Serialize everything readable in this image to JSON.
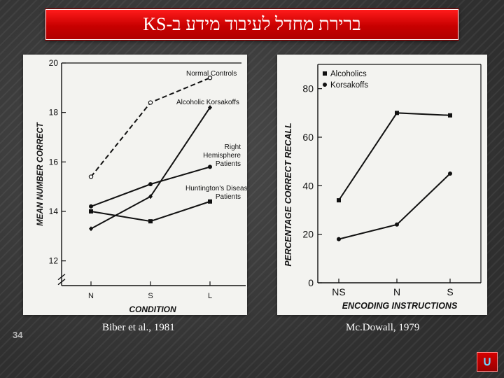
{
  "slide": {
    "title": "ברירת מחדל לעיבוד מידע ב-KS",
    "slide_number": "34",
    "return_icon": "u-turn-return-icon",
    "colors": {
      "banner": "#d40000",
      "background": "#3a3a3a",
      "panel": "#f3f3f0",
      "ink": "#111111"
    }
  },
  "chart_data": [
    {
      "type": "line",
      "caption": "Biber et al., 1981",
      "xlabel": "CONDITION",
      "ylabel": "MEAN NUMBER CORRECT",
      "categories": [
        "N",
        "S",
        "L"
      ],
      "ylim": [
        11,
        20
      ],
      "yticks": [
        12,
        14,
        16,
        18,
        20
      ],
      "axis_break": true,
      "series": [
        {
          "name": "Normal Controls",
          "values": [
            15.4,
            18.4,
            19.4
          ],
          "marker": "open-circle",
          "dash": true
        },
        {
          "name": "Alcoholic Korsakoffs",
          "values": [
            13.3,
            14.6,
            18.2
          ],
          "marker": "diamond",
          "dash": false
        },
        {
          "name": "Right Hemisphere Patients",
          "values": [
            14.2,
            15.1,
            15.8
          ],
          "marker": "filled-circle",
          "dash": false
        },
        {
          "name": "Huntington's Disease Patients",
          "values": [
            14.0,
            13.6,
            14.4
          ],
          "marker": "filled-square",
          "dash": false
        }
      ]
    },
    {
      "type": "line",
      "caption": "Mc.Dowall, 1979",
      "xlabel": "ENCODING INSTRUCTIONS",
      "ylabel": "PERCENTAGE CORRECT RECALL",
      "categories": [
        "NS",
        "N",
        "S"
      ],
      "ylim": [
        0,
        90
      ],
      "yticks": [
        0,
        20,
        40,
        60,
        80
      ],
      "legend_position": "top-left",
      "series": [
        {
          "name": "Alcoholics",
          "values": [
            34,
            70,
            69
          ],
          "marker": "filled-square"
        },
        {
          "name": "Korsakoffs",
          "values": [
            18,
            24,
            45
          ],
          "marker": "filled-circle"
        }
      ]
    }
  ]
}
